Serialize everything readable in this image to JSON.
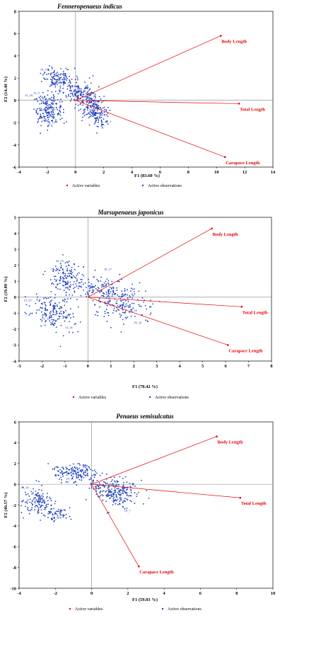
{
  "chart_data": [
    {
      "type": "scatter",
      "title": "Fenneropenaeus indicus",
      "xlabel": "F1 (83.60 %)",
      "ylabel": "F2 (14.40 %)",
      "xlim": [
        -4,
        14
      ],
      "ylim": [
        -6,
        8
      ],
      "xticks": [
        -4,
        -2,
        0,
        2,
        4,
        6,
        8,
        10,
        12,
        14
      ],
      "yticks": [
        -6,
        -4,
        -2,
        0,
        2,
        4,
        6,
        8
      ],
      "grid": false,
      "legend": {
        "position": "bottom",
        "entries": [
          "Active variables",
          "Active observations"
        ]
      },
      "series": [
        {
          "name": "Active variables",
          "color": "#e60000",
          "vectors": [
            {
              "label": "Body Length",
              "x": 10.3,
              "y": 5.8
            },
            {
              "label": "Total Length",
              "x": 11.6,
              "y": -0.3
            },
            {
              "label": "Carapace Length",
              "x": 10.6,
              "y": -5.1
            }
          ]
        },
        {
          "name": "Active observations",
          "color": "#1f3fbf",
          "clusters": [
            {
              "cx": -1.3,
              "cy": 2.0,
              "sx": 0.55,
              "sy": 0.45,
              "n": 130,
              "rot": -0.3
            },
            {
              "cx": 1.2,
              "cy": -0.5,
              "sx": 0.45,
              "sy": 1.0,
              "n": 260,
              "rot": 0.45
            },
            {
              "cx": -1.9,
              "cy": -0.7,
              "sx": 0.5,
              "sy": 0.75,
              "n": 200,
              "rot": 0.0
            },
            {
              "cx": 0.0,
              "cy": 0.7,
              "sx": 0.35,
              "sy": 0.45,
              "n": 70,
              "rot": 0.0
            }
          ],
          "labels": [
            {
              "text": "16_16",
              "x": -2.5,
              "y": 2.7
            },
            {
              "text": "13_9",
              "x": -3.0,
              "y": 0.6
            },
            {
              "text": "12_18",
              "x": -3.6,
              "y": 0.35
            },
            {
              "text": "19_2",
              "x": 2.1,
              "y": -2.0
            },
            {
              "text": "26_17",
              "x": -2.0,
              "y": -2.1
            }
          ]
        }
      ]
    },
    {
      "type": "scatter",
      "title": "Marsupenaeus japonicus",
      "xlabel": "F1 (78.42 %)",
      "ylabel": "F2 (19.89 %)",
      "xlim": [
        -3,
        8
      ],
      "ylim": [
        -4,
        5
      ],
      "xticks": [
        -3,
        -2,
        -1,
        0,
        1,
        2,
        3,
        4,
        5,
        6,
        7,
        8
      ],
      "yticks": [
        -4,
        -3,
        -2,
        -1,
        0,
        1,
        2,
        3,
        4,
        5
      ],
      "grid": false,
      "legend": {
        "position": "bottom",
        "entries": [
          "Active variables",
          "Active observations"
        ]
      },
      "series": [
        {
          "name": "Active variables",
          "color": "#e60000",
          "vectors": [
            {
              "label": "Body Length",
              "x": 5.4,
              "y": 4.3
            },
            {
              "label": "Total Length",
              "x": 6.7,
              "y": -0.6
            },
            {
              "label": "Carapace Length",
              "x": 6.1,
              "y": -3.0
            }
          ]
        },
        {
          "name": "Active observations",
          "color": "#1f3fbf",
          "clusters": [
            {
              "cx": -0.9,
              "cy": 1.2,
              "sx": 0.35,
              "sy": 0.55,
              "n": 150,
              "rot": 0.0
            },
            {
              "cx": 1.3,
              "cy": -0.2,
              "sx": 0.55,
              "sy": 0.75,
              "n": 230,
              "rot": 0.55
            },
            {
              "cx": -1.5,
              "cy": -0.9,
              "sx": 0.4,
              "sy": 0.55,
              "n": 170,
              "rot": 0.6
            },
            {
              "cx": 0.3,
              "cy": 0.6,
              "sx": 0.4,
              "sy": 0.3,
              "n": 60,
              "rot": 0.0
            }
          ],
          "labels": [
            {
              "text": "26_15",
              "x": -1.4,
              "y": 2.2
            },
            {
              "text": "26_17",
              "x": -1.6,
              "y": 1.7
            },
            {
              "text": "16_17",
              "x": 0.7,
              "y": 1.7
            },
            {
              "text": "12_22",
              "x": -2.8,
              "y": -0.25
            },
            {
              "text": "12_31",
              "x": -2.0,
              "y": -1.4
            },
            {
              "text": "12_41",
              "x": -1.0,
              "y": -1.95
            },
            {
              "text": "26_23",
              "x": 1.8,
              "y": -0.9
            },
            {
              "text": "26_10",
              "x": 2.0,
              "y": -1.65
            }
          ]
        }
      ]
    },
    {
      "type": "scatter",
      "title": "Penaeus semisulcatus",
      "xlabel": "F1 (59.03 %)",
      "ylabel": "F2 (40.57 %)",
      "xlim": [
        -4,
        10
      ],
      "ylim": [
        -10,
        6
      ],
      "xticks": [
        -4,
        -2,
        0,
        2,
        4,
        6,
        8,
        10
      ],
      "yticks": [
        -10,
        -8,
        -6,
        -4,
        -2,
        0,
        2,
        4,
        6
      ],
      "grid": false,
      "legend": {
        "position": "bottom",
        "entries": [
          "Active variables",
          "Active observations"
        ]
      },
      "series": [
        {
          "name": "Active variables",
          "color": "#e60000",
          "vectors": [
            {
              "label": "Body Length",
              "x": 6.9,
              "y": 4.6
            },
            {
              "label": "Total Length",
              "x": 8.2,
              "y": -1.3
            },
            {
              "label": "Carapace Length",
              "x": 2.6,
              "y": -7.9
            }
          ]
        },
        {
          "name": "Active observations",
          "color": "#1f3fbf",
          "clusters": [
            {
              "cx": -0.9,
              "cy": 1.1,
              "sx": 0.6,
              "sy": 0.45,
              "n": 160,
              "rot": -0.2
            },
            {
              "cx": 1.3,
              "cy": -0.7,
              "sx": 0.65,
              "sy": 0.8,
              "n": 240,
              "rot": 0.5
            },
            {
              "cx": -3.0,
              "cy": -1.6,
              "sx": 0.55,
              "sy": 0.7,
              "n": 150,
              "rot": 0.5
            },
            {
              "cx": -1.9,
              "cy": -2.9,
              "sx": 0.35,
              "sy": 0.35,
              "n": 50,
              "rot": 0.0
            }
          ],
          "labels": [
            {
              "text": "23_3",
              "x": -1.4,
              "y": 0.45
            },
            {
              "text": "26_16",
              "x": -3.9,
              "y": -0.4
            },
            {
              "text": "12_18",
              "x": -2.2,
              "y": -3.3
            },
            {
              "text": "16_7",
              "x": 1.8,
              "y": -2.6
            }
          ]
        }
      ]
    }
  ]
}
